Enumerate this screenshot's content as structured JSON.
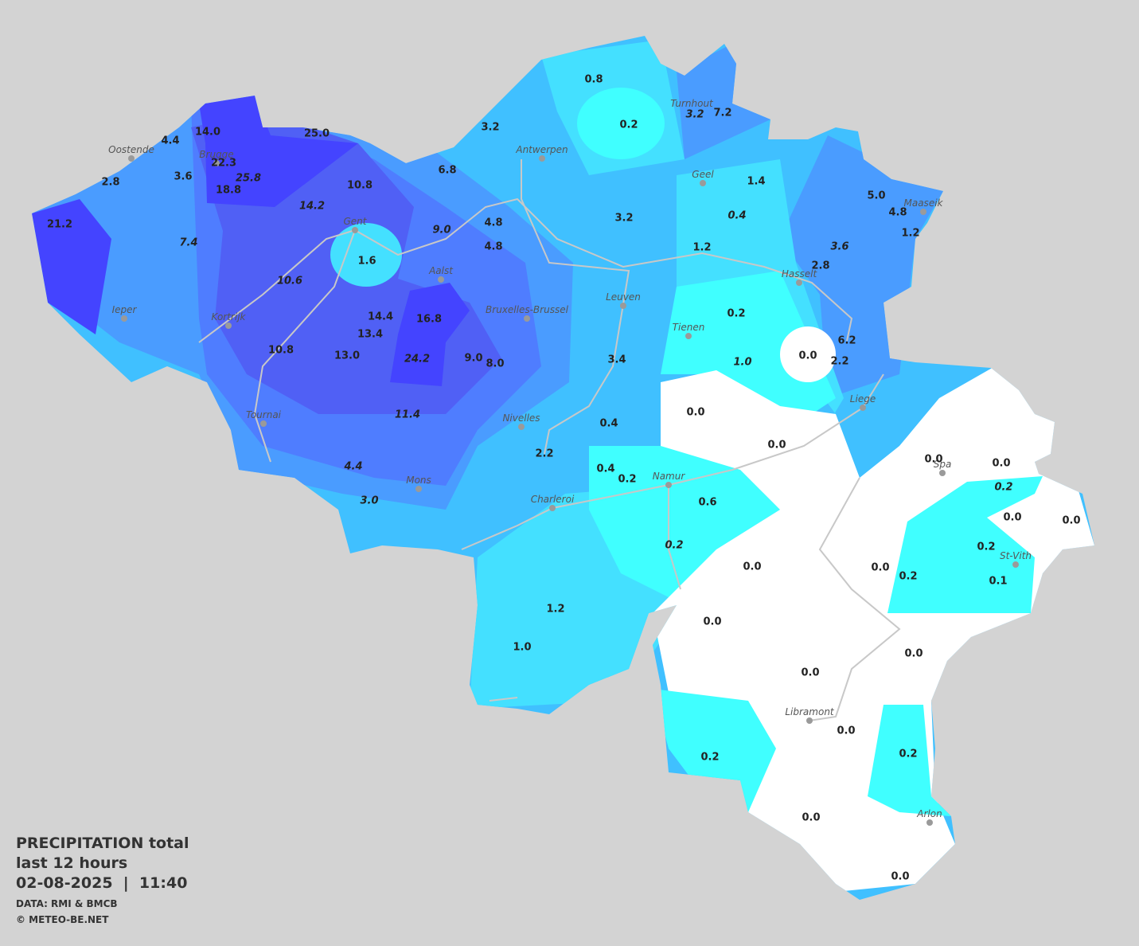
{
  "legend": {
    "title": "PRECIPITATION total",
    "period": "last 12 hours",
    "datetime": "02-08-2025  |  11:40",
    "source": "DATA: RMI & BMCB",
    "copyright": "© METEO-BE.NET"
  },
  "cities": [
    {
      "name": "Oostende"
    },
    {
      "name": "Brugge"
    },
    {
      "name": "Ieper"
    },
    {
      "name": "Kortrijk"
    },
    {
      "name": "Gent"
    },
    {
      "name": "Aalst"
    },
    {
      "name": "Antwerpen"
    },
    {
      "name": "Turnhout"
    },
    {
      "name": "Geel"
    },
    {
      "name": "Maaseik"
    },
    {
      "name": "Hasselt"
    },
    {
      "name": "Leuven"
    },
    {
      "name": "Tienen"
    },
    {
      "name": "Bruxelles-Brussel"
    },
    {
      "name": "Tournai"
    },
    {
      "name": "Nivelles"
    },
    {
      "name": "Liege"
    },
    {
      "name": "Mons"
    },
    {
      "name": "Charleroi"
    },
    {
      "name": "Namur"
    },
    {
      "name": "Spa"
    },
    {
      "name": "St-Vith"
    },
    {
      "name": "Libramont"
    },
    {
      "name": "Arlon"
    }
  ],
  "values": [
    {
      "label": "14.0",
      "italic": false
    },
    {
      "label": "4.4",
      "italic": false
    },
    {
      "label": "25.0",
      "italic": false
    },
    {
      "label": "22.3",
      "italic": false
    },
    {
      "label": "3.6",
      "italic": false
    },
    {
      "label": "2.8",
      "italic": false
    },
    {
      "label": "25.8",
      "italic": true
    },
    {
      "label": "18.8",
      "italic": false
    },
    {
      "label": "10.8",
      "italic": false
    },
    {
      "label": "6.8",
      "italic": false
    },
    {
      "label": "3.2",
      "italic": false
    },
    {
      "label": "0.8",
      "italic": false
    },
    {
      "label": "0.2",
      "italic": false
    },
    {
      "label": "3.2",
      "italic": true
    },
    {
      "label": "7.2",
      "italic": false
    },
    {
      "label": "21.2",
      "italic": false
    },
    {
      "label": "14.2",
      "italic": true
    },
    {
      "label": "7.4",
      "italic": true
    },
    {
      "label": "4.8",
      "italic": false
    },
    {
      "label": "9.0",
      "italic": true
    },
    {
      "label": "1.6",
      "italic": false
    },
    {
      "label": "4.8",
      "italic": false
    },
    {
      "label": "3.2",
      "italic": false
    },
    {
      "label": "1.2",
      "italic": false
    },
    {
      "label": "1.4",
      "italic": false
    },
    {
      "label": "0.4",
      "italic": true
    },
    {
      "label": "5.0",
      "italic": false
    },
    {
      "label": "4.8",
      "italic": false
    },
    {
      "label": "1.2",
      "italic": false
    },
    {
      "label": "3.6",
      "italic": true
    },
    {
      "label": "2.8",
      "italic": false
    },
    {
      "label": "10.6",
      "italic": true
    },
    {
      "label": "14.4",
      "italic": false
    },
    {
      "label": "16.8",
      "italic": false
    },
    {
      "label": "13.4",
      "italic": false
    },
    {
      "label": "0.2",
      "italic": false
    },
    {
      "label": "10.8",
      "italic": false
    },
    {
      "label": "13.0",
      "italic": false
    },
    {
      "label": "24.2",
      "italic": true
    },
    {
      "label": "9.0",
      "italic": false
    },
    {
      "label": "8.0",
      "italic": false
    },
    {
      "label": "3.4",
      "italic": false
    },
    {
      "label": "1.0",
      "italic": true
    },
    {
      "label": "0.0",
      "italic": false
    },
    {
      "label": "6.2",
      "italic": false
    },
    {
      "label": "2.2",
      "italic": false
    },
    {
      "label": "11.4",
      "italic": true
    },
    {
      "label": "0.0",
      "italic": false
    },
    {
      "label": "0.4",
      "italic": false
    },
    {
      "label": "0.0",
      "italic": false
    },
    {
      "label": "2.2",
      "italic": false
    },
    {
      "label": "0.0",
      "italic": false
    },
    {
      "label": "0.0",
      "italic": false
    },
    {
      "label": "4.4",
      "italic": true
    },
    {
      "label": "0.4",
      "italic": false
    },
    {
      "label": "0.2",
      "italic": false
    },
    {
      "label": "0.2",
      "italic": true
    },
    {
      "label": "3.0",
      "italic": true
    },
    {
      "label": "0.6",
      "italic": false
    },
    {
      "label": "0.0",
      "italic": false
    },
    {
      "label": "0.0",
      "italic": false
    },
    {
      "label": "0.2",
      "italic": true
    },
    {
      "label": "0.2",
      "italic": false
    },
    {
      "label": "0.0",
      "italic": false
    },
    {
      "label": "0.0",
      "italic": false
    },
    {
      "label": "0.2",
      "italic": false
    },
    {
      "label": "0.1",
      "italic": false
    },
    {
      "label": "1.2",
      "italic": false
    },
    {
      "label": "0.0",
      "italic": false
    },
    {
      "label": "1.0",
      "italic": false
    },
    {
      "label": "0.0",
      "italic": false
    },
    {
      "label": "0.0",
      "italic": false
    },
    {
      "label": "0.0",
      "italic": false
    },
    {
      "label": "0.2",
      "italic": false
    },
    {
      "label": "0.2",
      "italic": false
    },
    {
      "label": "0.0",
      "italic": false
    },
    {
      "label": "0.0",
      "italic": false
    }
  ]
}
